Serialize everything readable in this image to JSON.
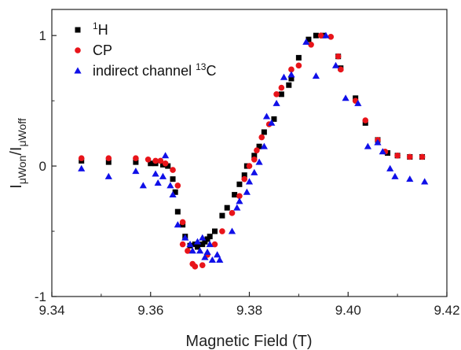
{
  "chart_data": {
    "type": "scatter",
    "xlabel": "Magnetic Field (T)",
    "ylabel": {
      "main": "I",
      "sub1": "μWon",
      "sep": "/I",
      "sub2": "μWoff"
    },
    "xlim": [
      9.34,
      9.42
    ],
    "ylim": [
      -1,
      1.2
    ],
    "xticks": [
      "9.34",
      "9.36",
      "9.38",
      "9.40",
      "9.42"
    ],
    "xtick_values": [
      9.34,
      9.36,
      9.38,
      9.4,
      9.42
    ],
    "yticks": [
      "-1",
      "0",
      "1"
    ],
    "ytick_values": [
      -1,
      0,
      1
    ],
    "grid": false,
    "legend_position": "top-left",
    "series": [
      {
        "name": "H",
        "name_sup": "1",
        "name_suffix": "",
        "marker": "square",
        "color": "#000000",
        "points": [
          [
            9.346,
            0.04
          ],
          [
            9.3515,
            0.03
          ],
          [
            9.357,
            0.03
          ],
          [
            9.36,
            0.02
          ],
          [
            9.361,
            0.02
          ],
          [
            9.3625,
            0.01
          ],
          [
            9.3635,
            0.0
          ],
          [
            9.3645,
            -0.1
          ],
          [
            9.365,
            -0.2
          ],
          [
            9.3655,
            -0.35
          ],
          [
            9.3665,
            -0.45
          ],
          [
            9.367,
            -0.54
          ],
          [
            9.368,
            -0.61
          ],
          [
            9.369,
            -0.6
          ],
          [
            9.3695,
            -0.62
          ],
          [
            9.3705,
            -0.6
          ],
          [
            9.371,
            -0.58
          ],
          [
            9.3715,
            -0.56
          ],
          [
            9.372,
            -0.54
          ],
          [
            9.373,
            -0.5
          ],
          [
            9.3745,
            -0.38
          ],
          [
            9.3755,
            -0.32
          ],
          [
            9.377,
            -0.22
          ],
          [
            9.378,
            -0.14
          ],
          [
            9.379,
            -0.07
          ],
          [
            9.3795,
            0.0
          ],
          [
            9.381,
            0.08
          ],
          [
            9.382,
            0.15
          ],
          [
            9.383,
            0.26
          ],
          [
            9.385,
            0.36
          ],
          [
            9.3865,
            0.55
          ],
          [
            9.388,
            0.62
          ],
          [
            9.3885,
            0.67
          ],
          [
            9.39,
            0.83
          ],
          [
            9.392,
            0.97
          ],
          [
            9.3935,
            1.0
          ],
          [
            9.395,
            1.0
          ],
          [
            9.398,
            0.84
          ],
          [
            9.3985,
            0.75
          ],
          [
            9.4015,
            0.52
          ],
          [
            9.4035,
            0.33
          ],
          [
            9.406,
            0.2
          ],
          [
            9.408,
            0.1
          ],
          [
            9.41,
            0.08
          ],
          [
            9.4125,
            0.07
          ],
          [
            9.415,
            0.07
          ]
        ]
      },
      {
        "name": "CP",
        "name_sup": "",
        "name_suffix": "",
        "marker": "circle",
        "color": "#e8141a",
        "points": [
          [
            9.346,
            0.06
          ],
          [
            9.3515,
            0.06
          ],
          [
            9.357,
            0.06
          ],
          [
            9.3595,
            0.05
          ],
          [
            9.361,
            0.04
          ],
          [
            9.362,
            0.04
          ],
          [
            9.363,
            0.02
          ],
          [
            9.3645,
            -0.03
          ],
          [
            9.3655,
            -0.15
          ],
          [
            9.3665,
            -0.43
          ],
          [
            9.3665,
            -0.6
          ],
          [
            9.3675,
            -0.65
          ],
          [
            9.3685,
            -0.75
          ],
          [
            9.369,
            -0.77
          ],
          [
            9.3705,
            -0.76
          ],
          [
            9.3715,
            -0.68
          ],
          [
            9.373,
            -0.6
          ],
          [
            9.3745,
            -0.5
          ],
          [
            9.3765,
            -0.36
          ],
          [
            9.378,
            -0.23
          ],
          [
            9.379,
            -0.1
          ],
          [
            9.38,
            0.0
          ],
          [
            9.381,
            0.05
          ],
          [
            9.3815,
            0.12
          ],
          [
            9.3825,
            0.22
          ],
          [
            9.384,
            0.32
          ],
          [
            9.3855,
            0.55
          ],
          [
            9.3865,
            0.6
          ],
          [
            9.3885,
            0.74
          ],
          [
            9.39,
            0.77
          ],
          [
            9.3925,
            0.93
          ],
          [
            9.3945,
            1.0
          ],
          [
            9.3965,
            0.99
          ],
          [
            9.398,
            0.84
          ],
          [
            9.3985,
            0.74
          ],
          [
            9.4015,
            0.5
          ],
          [
            9.4035,
            0.35
          ],
          [
            9.406,
            0.2
          ],
          [
            9.4075,
            0.11
          ],
          [
            9.41,
            0.08
          ],
          [
            9.4125,
            0.07
          ],
          [
            9.415,
            0.07
          ]
        ]
      },
      {
        "name": "indirect channel ",
        "name_sup": "13",
        "name_suffix": "C",
        "marker": "triangle",
        "color": "#1010e8",
        "points": [
          [
            9.346,
            -0.02
          ],
          [
            9.3515,
            -0.08
          ],
          [
            9.357,
            -0.04
          ],
          [
            9.3585,
            -0.15
          ],
          [
            9.361,
            -0.06
          ],
          [
            9.3615,
            -0.13
          ],
          [
            9.3625,
            -0.08
          ],
          [
            9.363,
            0.08
          ],
          [
            9.364,
            -0.15
          ],
          [
            9.3645,
            -0.22
          ],
          [
            9.3655,
            -0.45
          ],
          [
            9.367,
            -0.55
          ],
          [
            9.368,
            -0.6
          ],
          [
            9.3685,
            -0.65
          ],
          [
            9.3695,
            -0.58
          ],
          [
            9.37,
            -0.65
          ],
          [
            9.3705,
            -0.55
          ],
          [
            9.371,
            -0.7
          ],
          [
            9.3715,
            -0.66
          ],
          [
            9.372,
            -0.6
          ],
          [
            9.3725,
            -0.72
          ],
          [
            9.3735,
            -0.68
          ],
          [
            9.374,
            -0.72
          ],
          [
            9.3765,
            -0.5
          ],
          [
            9.3775,
            -0.32
          ],
          [
            9.378,
            -0.27
          ],
          [
            9.3795,
            -0.2
          ],
          [
            9.38,
            -0.12
          ],
          [
            9.381,
            -0.05
          ],
          [
            9.382,
            0.03
          ],
          [
            9.383,
            0.15
          ],
          [
            9.3835,
            0.38
          ],
          [
            9.3845,
            0.33
          ],
          [
            9.3855,
            0.48
          ],
          [
            9.387,
            0.68
          ],
          [
            9.3885,
            0.7
          ],
          [
            9.3915,
            0.95
          ],
          [
            9.3935,
            0.69
          ],
          [
            9.3955,
            1.0
          ],
          [
            9.3975,
            0.77
          ],
          [
            9.3995,
            0.52
          ],
          [
            9.402,
            0.48
          ],
          [
            9.404,
            0.15
          ],
          [
            9.406,
            0.18
          ],
          [
            9.407,
            0.11
          ],
          [
            9.4085,
            -0.02
          ],
          [
            9.4095,
            -0.08
          ],
          [
            9.4125,
            -0.1
          ],
          [
            9.4155,
            -0.12
          ]
        ]
      }
    ]
  }
}
